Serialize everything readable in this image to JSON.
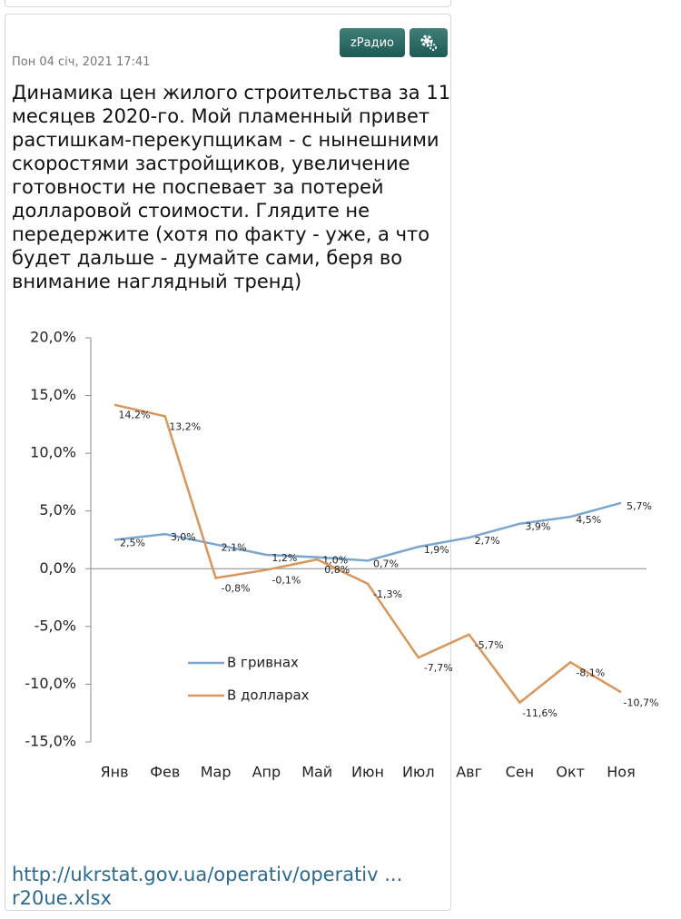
{
  "post": {
    "date": "Пон 04 січ, 2021 17:41",
    "buttons": [
      "zРадио"
    ],
    "text": "Динамика цен жилого строительства за 11 месяцев 2020-го. Мой пламенный привет растишкам-перекупщикам - с нынешними скоростями застройщиков, увеличение готовности не поспевает за потерей долларовой стоимости. Глядите не передержите (хотя по факту - уже, а что будет дальше - думайте сами, беря во внимание наглядный тренд)",
    "link": "http://ukrstat.gov.ua/operativ/operativ ... r20ue.xlsx"
  },
  "chart_data": {
    "type": "line",
    "categories": [
      "Янв",
      "Фев",
      "Мар",
      "Апр",
      "Май",
      "Июн",
      "Июл",
      "Авг",
      "Сен",
      "Окт",
      "Ноя"
    ],
    "series": [
      {
        "name": "В гривнах",
        "color": "#7aa6cf",
        "values": [
          2.5,
          3.0,
          2.1,
          1.2,
          1.0,
          0.7,
          1.9,
          2.7,
          3.9,
          4.5,
          5.7
        ],
        "value_labels": [
          "2,5%",
          "3,0%",
          "2,1%",
          "1,2%",
          "1,0%",
          "0,7%",
          "1,9%",
          "2,7%",
          "3,9%",
          "4,5%",
          "5,7%"
        ]
      },
      {
        "name": "В долларах",
        "color": "#d9955a",
        "values": [
          14.2,
          13.2,
          -0.8,
          -0.1,
          0.8,
          -1.3,
          -7.7,
          -5.7,
          -11.6,
          -8.1,
          -10.7
        ],
        "value_labels": [
          "14,2%",
          "13,2%",
          "-0,8%",
          "-0,1%",
          "0,8%",
          "-1,3%",
          "-7,7%",
          "-5,7%",
          "-11,6%",
          "-8,1%",
          "-10,7%"
        ]
      }
    ],
    "ylim": [
      -15,
      20
    ],
    "yticks": [
      {
        "value": -15,
        "label": "-15,0%"
      },
      {
        "value": -10,
        "label": "-10,0%"
      },
      {
        "value": -5,
        "label": "-5,0%"
      },
      {
        "value": 0,
        "label": "0,0%"
      },
      {
        "value": 5,
        "label": "5,0%"
      },
      {
        "value": 10,
        "label": "10,0%"
      },
      {
        "value": 15,
        "label": "15,0%"
      },
      {
        "value": 20,
        "label": "20,0%"
      }
    ],
    "legend": "center-left"
  }
}
